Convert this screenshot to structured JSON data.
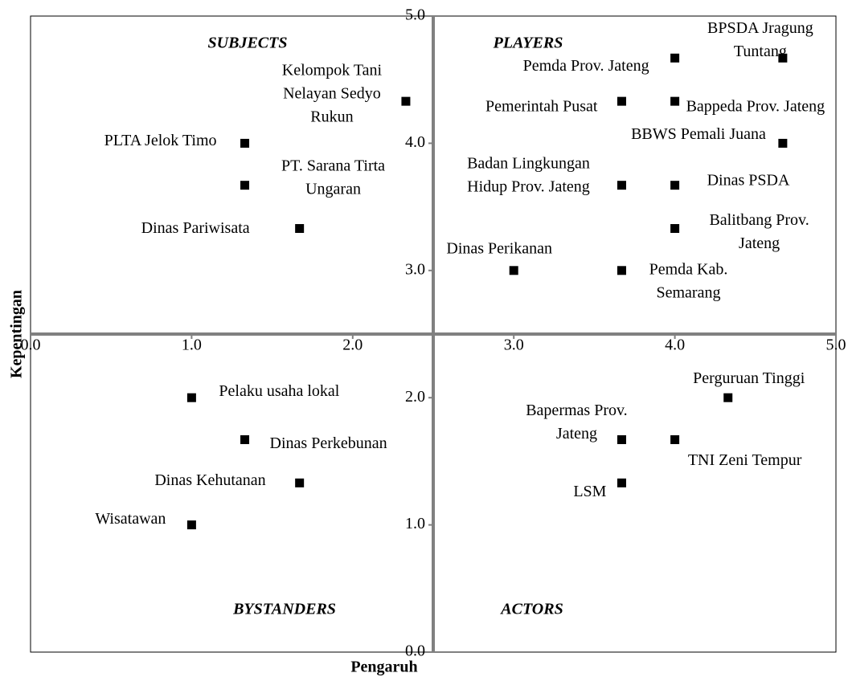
{
  "chart_data": {
    "type": "scatter",
    "x_label": "Pengaruh",
    "y_label": "Kepentingan",
    "annotations": [
      "SUBJECTS",
      "PLAYERS",
      "BYSTANDERS",
      "ACTORS"
    ],
    "xlim": [
      0,
      5
    ],
    "ylim": [
      0,
      5
    ],
    "xticks": [
      {
        "value": 0,
        "label": "0.0"
      },
      {
        "value": 1,
        "label": "1.0"
      },
      {
        "value": 2,
        "label": "2.0"
      },
      {
        "value": 3,
        "label": "3.0"
      },
      {
        "value": 4,
        "label": "4.0"
      },
      {
        "value": 5,
        "label": "5.0"
      }
    ],
    "yticks": [
      {
        "value": 0,
        "label": "0.0"
      },
      {
        "value": 1,
        "label": "1.0"
      },
      {
        "value": 2,
        "label": "2.0"
      },
      {
        "value": 3,
        "label": "3.0"
      },
      {
        "value": 4,
        "label": "4.0"
      },
      {
        "value": 5,
        "label": "5.0"
      }
    ],
    "color": "#000000",
    "labels": [
      [
        "BPSDA Jragung",
        "Tuntang"
      ],
      [
        "Pemda Prov. Jateng"
      ],
      [
        "Kelompok Tani",
        "Nelayan Sedyo",
        "Rukun"
      ],
      [
        "Pemerintah Pusat"
      ],
      [
        "Bappeda Prov. Jateng"
      ],
      [
        "PLTA Jelok Timo"
      ],
      [
        "BBWS Pemali Juana"
      ],
      [
        "PT. Sarana Tirta",
        "Ungaran"
      ],
      [
        "Badan Lingkungan",
        "Hidup Prov. Jateng"
      ],
      [
        "Dinas PSDA"
      ],
      [
        "Dinas Pariwisata"
      ],
      [
        "Balitbang Prov.",
        "Jateng"
      ],
      [
        "Dinas Perikanan"
      ],
      [
        "Pemda Kab.",
        "Semarang"
      ],
      [
        "Pelaku usaha lokal"
      ],
      [
        "Perguruan Tinggi"
      ],
      [
        "Dinas Perkebunan"
      ],
      [
        "Bapermas Prov.",
        "Jateng"
      ],
      [
        "TNI Zeni Tempur"
      ],
      [
        "Dinas Kehutanan"
      ],
      [
        "LSM"
      ],
      [
        "Wisatawan"
      ]
    ],
    "x": [
      4.67,
      4.0,
      2.33,
      3.67,
      4.0,
      1.33,
      4.67,
      1.33,
      3.67,
      4.0,
      1.67,
      4.0,
      3.0,
      3.67,
      1.0,
      4.33,
      1.33,
      3.67,
      4.0,
      1.67,
      3.67,
      1.0
    ],
    "values": [
      4.67,
      4.67,
      4.33,
      4.33,
      4.33,
      4.0,
      4.0,
      3.67,
      3.67,
      3.67,
      3.33,
      3.33,
      3.0,
      3.0,
      2.0,
      2.0,
      1.67,
      1.67,
      1.67,
      1.33,
      1.33,
      1.0
    ]
  }
}
